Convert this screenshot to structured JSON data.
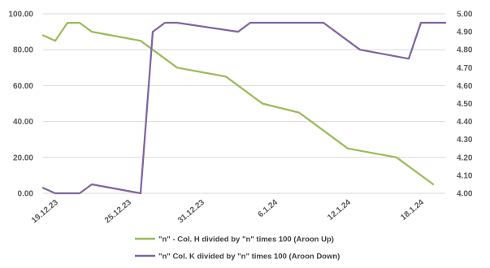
{
  "chart_data": {
    "type": "line",
    "title": "",
    "xlabel": "",
    "ylabel": "",
    "x_tick_labels": [
      "19.12.23",
      "25.12.23",
      "31.12.23",
      "6.1.24",
      "12.1.24",
      "18.1.24"
    ],
    "y_left": {
      "range": [
        0,
        100
      ],
      "tick_labels": [
        "0.00",
        "20.00",
        "40.00",
        "60.00",
        "80.00",
        "100.00"
      ]
    },
    "y_right": {
      "range": [
        4.0,
        5.0
      ],
      "tick_labels": [
        "4.00",
        "4.10",
        "4.20",
        "4.30",
        "4.40",
        "4.50",
        "4.60",
        "4.70",
        "4.80",
        "4.90",
        "5.00"
      ]
    },
    "grid": "horizontal",
    "legend_position": "bottom",
    "series": [
      {
        "name": "\"n\" - Col. H divided by \"n\" times 100 (Aroon Up)",
        "axis": "left",
        "color": "#9BBB59",
        "points": [
          [
            "2023-12-18",
            88
          ],
          [
            "2023-12-19",
            85
          ],
          [
            "2023-12-20",
            95
          ],
          [
            "2023-12-21",
            95
          ],
          [
            "2023-12-22",
            90
          ],
          [
            "2023-12-26",
            85
          ],
          [
            "2023-12-29",
            70
          ],
          [
            "2024-01-02",
            65
          ],
          [
            "2024-01-05",
            50
          ],
          [
            "2024-01-08",
            45
          ],
          [
            "2024-01-12",
            25
          ],
          [
            "2024-01-16",
            20
          ],
          [
            "2024-01-19",
            5
          ]
        ]
      },
      {
        "name": "\"n\" Col. K divided by \"n\" times 100 (Aroon Down)",
        "axis": "right",
        "color": "#8064A2",
        "points": [
          [
            "2023-12-18",
            4.03
          ],
          [
            "2023-12-19",
            4.0
          ],
          [
            "2023-12-21",
            4.0
          ],
          [
            "2023-12-22",
            4.05
          ],
          [
            "2023-12-26",
            4.0
          ],
          [
            "2023-12-27",
            4.9
          ],
          [
            "2023-12-28",
            4.95
          ],
          [
            "2023-12-29",
            4.95
          ],
          [
            "2024-01-03",
            4.9
          ],
          [
            "2024-01-04",
            4.95
          ],
          [
            "2024-01-10",
            4.95
          ],
          [
            "2024-01-13",
            4.8
          ],
          [
            "2024-01-17",
            4.75
          ],
          [
            "2024-01-18",
            4.95
          ],
          [
            "2024-01-20",
            4.95
          ]
        ]
      }
    ]
  }
}
